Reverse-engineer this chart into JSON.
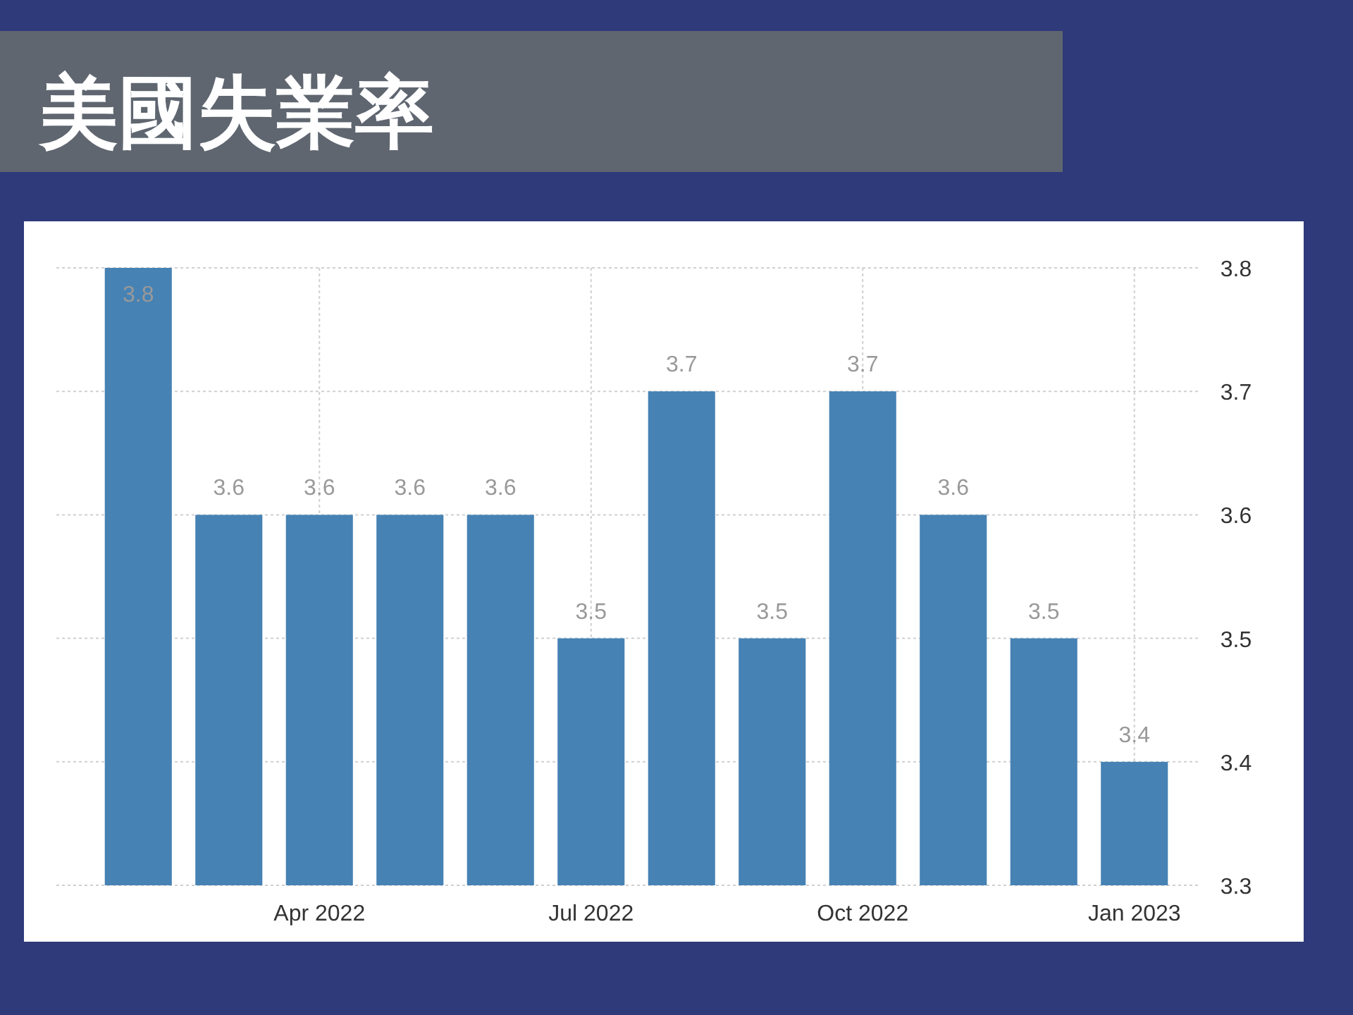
{
  "chart_data": {
    "type": "bar",
    "title": "美國失業率",
    "categories": [
      null,
      null,
      "Apr 2022",
      null,
      null,
      "Jul 2022",
      null,
      null,
      "Oct 2022",
      null,
      null,
      "Jan 2023"
    ],
    "values": [
      3.8,
      3.6,
      3.6,
      3.6,
      3.6,
      3.5,
      3.7,
      3.5,
      3.7,
      3.6,
      3.5,
      3.4
    ],
    "color": "#4682b4",
    "ylim": [
      3.3,
      3.8
    ],
    "yticks": [
      3.3,
      3.4,
      3.5,
      3.6,
      3.7,
      3.8
    ],
    "grid": true,
    "data_labels": true
  }
}
